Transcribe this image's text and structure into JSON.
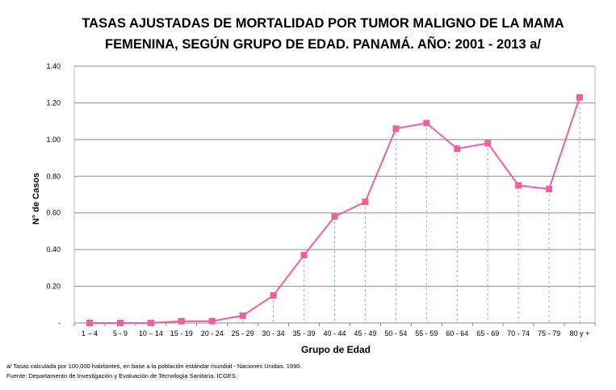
{
  "chart_data": {
    "type": "line",
    "title_line1": "TASAS AJUSTADAS DE MORTALIDAD POR TUMOR MALIGNO DE LA  MAMA",
    "title_line2": "FEMENINA, SEGÚN GRUPO DE EDAD.  PANAMÁ. AÑO: 2001 - 2013 a/",
    "xlabel": "Grupo de Edad",
    "ylabel": "N° de Casos",
    "categories": [
      "1 – 4",
      "5 - 9",
      "10 – 14",
      "15 - 19",
      "20 - 24",
      "25 - 29",
      "30 - 34",
      "35 - 39",
      "40 - 44",
      "45 - 49",
      "50 - 54",
      "55 - 59",
      "60 - 64",
      "65 - 69",
      "70 - 74",
      "75 - 79",
      "80 y +"
    ],
    "values": [
      0.0,
      0.0,
      0.0,
      0.01,
      0.01,
      0.04,
      0.15,
      0.37,
      0.58,
      0.66,
      1.06,
      1.09,
      0.95,
      0.98,
      0.75,
      0.73,
      1.23
    ],
    "yticks": [
      "-",
      "0.20",
      "0.40",
      "0.60",
      "0.80",
      "1.00",
      "1.20",
      "1.40"
    ],
    "ylim": [
      0,
      1.4
    ],
    "grid": true,
    "line_color": "#ef5fa0",
    "marker_color": "#ef5fa0",
    "drop_line_color": "#9aaed0"
  },
  "notes": {
    "line1": "a/ Tasas calculada por 100,000 habitantes, en base a la población estándar mundial - Naciones Unidas. 1990.",
    "line2": "Fuente: Departamento  de Investigación y Evaluación de Tecnología Sanitaria.  ICGES."
  }
}
